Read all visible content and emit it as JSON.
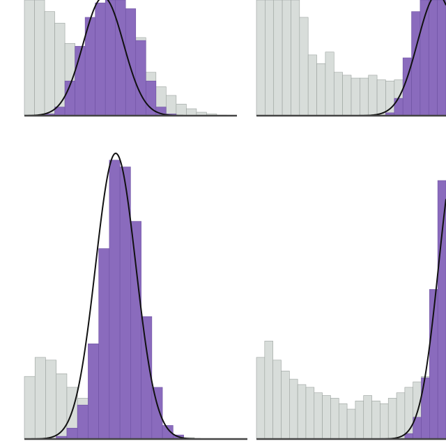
{
  "chart_data": [
    {
      "type": "bar",
      "panel": "top-left",
      "bin_width": 1,
      "ylim": [
        0,
        200
      ],
      "colors": {
        "background": "#d8ddda",
        "highlight": "#8a6bbd",
        "curve": "#111111",
        "axis": "#444444"
      },
      "background_bins": [
        200,
        200,
        180,
        160,
        125,
        115,
        100,
        85,
        90,
        100,
        115,
        135,
        75,
        50,
        35,
        20,
        12,
        6,
        3,
        1,
        0
      ],
      "highlight_bins": [
        0,
        0,
        3,
        15,
        60,
        120,
        170,
        195,
        200,
        200,
        185,
        130,
        60,
        15,
        3,
        0,
        0,
        0,
        0,
        0,
        0
      ],
      "curve": {
        "mean": 7.8,
        "sd": 2.0,
        "peak": 205
      }
    },
    {
      "type": "bar",
      "panel": "top-right",
      "bin_width": 1,
      "ylim": [
        0,
        200
      ],
      "colors": {
        "background": "#d8ddda",
        "highlight": "#8a6bbd",
        "curve": "#111111",
        "axis": "#444444"
      },
      "background_bins": [
        200,
        200,
        200,
        200,
        200,
        170,
        105,
        90,
        110,
        75,
        70,
        65,
        65,
        70,
        62,
        60,
        62,
        75,
        60,
        68,
        72,
        70
      ],
      "highlight_bins": [
        0,
        0,
        0,
        0,
        0,
        0,
        0,
        0,
        0,
        0,
        0,
        0,
        0,
        0,
        0,
        5,
        30,
        100,
        180,
        200,
        200,
        200
      ],
      "curve": {
        "mean": 21,
        "sd": 2.3,
        "peak": 210
      }
    },
    {
      "type": "bar",
      "panel": "bottom-left",
      "bin_width": 1,
      "ylim": [
        0,
        210
      ],
      "colors": {
        "background": "#d8ddda",
        "highlight": "#8a6bbd",
        "curve": "#111111",
        "axis": "#444444"
      },
      "background_bins": [
        46,
        60,
        58,
        48,
        38,
        30,
        25,
        22,
        18,
        12,
        8,
        6,
        4,
        3,
        2,
        1,
        0,
        0,
        0,
        0,
        0
      ],
      "highlight_bins": [
        0,
        0,
        0,
        2,
        8,
        25,
        70,
        140,
        205,
        200,
        160,
        90,
        38,
        10,
        3,
        0,
        0,
        0,
        0,
        0,
        0
      ],
      "curve": {
        "mean": 8.6,
        "sd": 1.9,
        "peak": 210
      }
    },
    {
      "type": "bar",
      "panel": "bottom-right",
      "bin_width": 1,
      "ylim": [
        0,
        210
      ],
      "colors": {
        "background": "#d8ddda",
        "highlight": "#8a6bbd",
        "curve": "#111111",
        "axis": "#444444"
      },
      "background_bins": [
        60,
        72,
        58,
        50,
        44,
        40,
        38,
        34,
        32,
        30,
        26,
        22,
        28,
        32,
        28,
        26,
        30,
        34,
        38,
        42,
        46,
        50,
        52
      ],
      "highlight_bins": [
        0,
        0,
        0,
        0,
        0,
        0,
        0,
        0,
        0,
        0,
        0,
        0,
        0,
        0,
        0,
        0,
        0,
        0,
        4,
        16,
        45,
        110,
        190
      ],
      "curve": {
        "mean": 24.3,
        "sd": 2.2,
        "peak": 210
      }
    }
  ]
}
